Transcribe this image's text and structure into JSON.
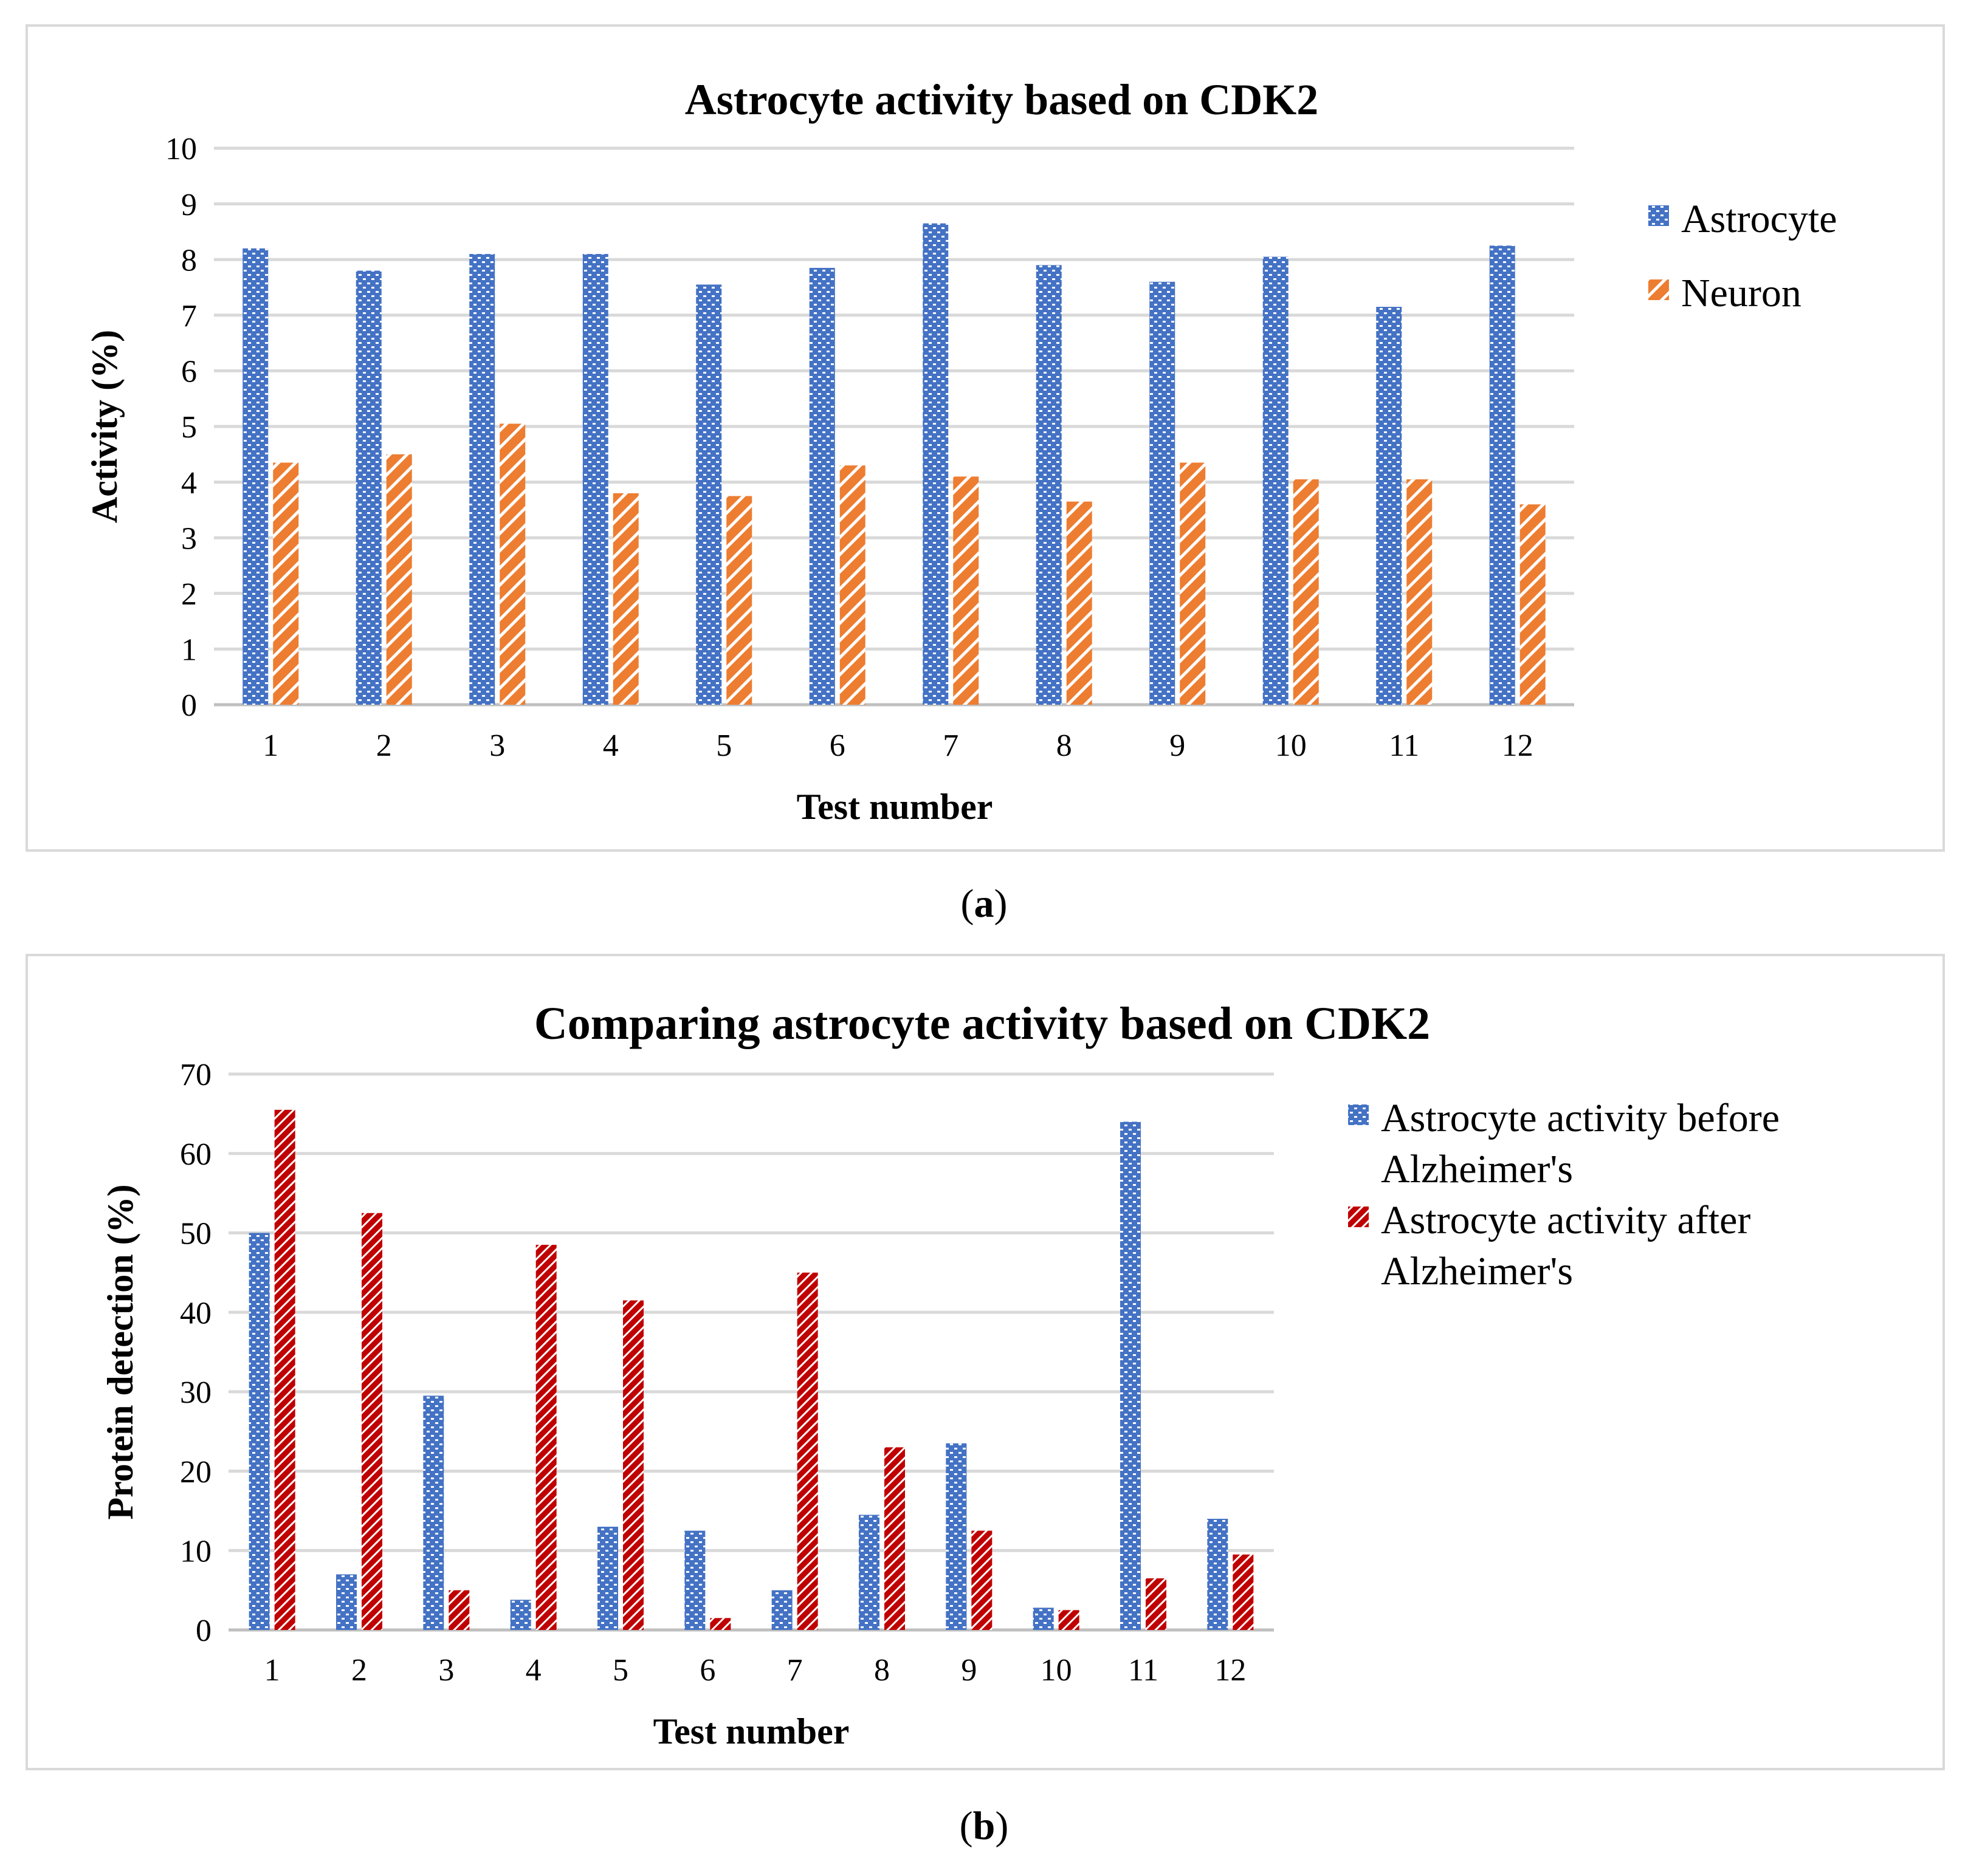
{
  "captions": {
    "a_letter": "a",
    "b_letter": "b"
  },
  "chart_data": [
    {
      "type": "bar",
      "title": "Astrocyte activity based on CDK2",
      "xlabel": "Test number",
      "ylabel": "Activity (%)",
      "ylim": [
        0,
        10
      ],
      "yticks": [
        "0",
        "1",
        "2",
        "3",
        "4",
        "5",
        "6",
        "7",
        "8",
        "9",
        "10"
      ],
      "grid": true,
      "legend_position": "right",
      "categories": [
        "1",
        "2",
        "3",
        "4",
        "5",
        "6",
        "7",
        "8",
        "9",
        "10",
        "11",
        "12"
      ],
      "series": [
        {
          "name": "Astrocyte",
          "color": "#4472c4",
          "pattern": "dots",
          "values": [
            8.2,
            7.8,
            8.1,
            8.1,
            7.55,
            7.85,
            8.65,
            7.9,
            7.6,
            8.05,
            7.15,
            8.25
          ]
        },
        {
          "name": "Neuron",
          "color": "#ed7d31",
          "pattern": "stripes",
          "values": [
            4.35,
            4.5,
            5.05,
            3.8,
            3.75,
            4.3,
            4.1,
            3.65,
            4.35,
            4.05,
            4.05,
            3.6
          ]
        }
      ]
    },
    {
      "type": "bar",
      "title": "Comparing astrocyte activity based on CDK2",
      "xlabel": "Test number",
      "ylabel": "Protein detection (%)",
      "ylim": [
        0,
        70
      ],
      "yticks": [
        "0",
        "10",
        "20",
        "30",
        "40",
        "50",
        "60",
        "70"
      ],
      "grid": true,
      "legend_position": "right",
      "categories": [
        "1",
        "2",
        "3",
        "4",
        "5",
        "6",
        "7",
        "8",
        "9",
        "10",
        "11",
        "12"
      ],
      "series": [
        {
          "name": "Astrocyte activity before Alzheimer's",
          "legend_lines": [
            "Astrocyte activity before",
            "Alzheimer's"
          ],
          "color": "#4472c4",
          "pattern": "dots",
          "values": [
            50,
            7,
            29.5,
            3.8,
            13,
            12.5,
            5,
            14.5,
            23.5,
            2.8,
            64,
            14
          ]
        },
        {
          "name": "Astrocyte activity after Alzheimer's",
          "legend_lines": [
            "Astrocyte activity after",
            "Alzheimer's"
          ],
          "color": "#c00000",
          "pattern": "stripes",
          "values": [
            65.5,
            52.5,
            5,
            48.5,
            41.5,
            1.5,
            45,
            23,
            12.5,
            2.5,
            6.5,
            9.5
          ]
        }
      ]
    }
  ]
}
